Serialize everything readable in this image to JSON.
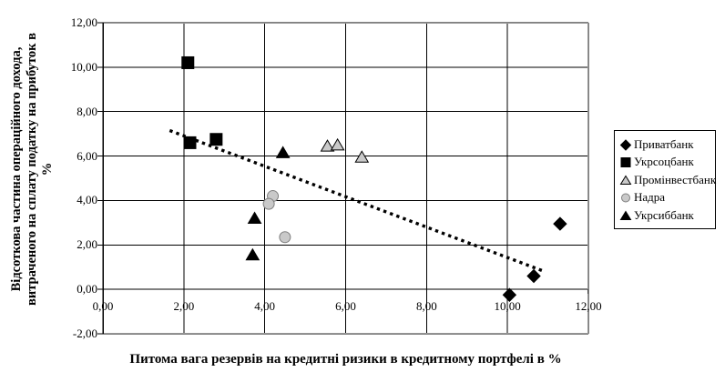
{
  "chart_data": {
    "type": "scatter",
    "title": "",
    "xlabel": "Питома вага резервів на кредитні ризики в кредитному портфелі в %",
    "ylabel_lines": [
      "Відсоткова частина операційного дохода,",
      "витраченого на сплату податку на прибуток в",
      "%"
    ],
    "xlim": [
      0,
      12
    ],
    "ylim": [
      -2,
      12
    ],
    "x_tick_values": [
      0,
      2,
      4,
      6,
      8,
      10,
      12
    ],
    "x_tick_labels": [
      "0,00",
      "2,00",
      "4,00",
      "6,00",
      "8,00",
      "10,00",
      "12,00"
    ],
    "y_tick_values": [
      -2,
      0,
      2,
      4,
      6,
      8,
      10,
      12
    ],
    "y_tick_labels": [
      "-2,00",
      "0,00",
      "2,00",
      "4,00",
      "6,00",
      "8,00",
      "10,00",
      "12,00"
    ],
    "grid": true,
    "legend_position": "right",
    "colors": {
      "marker_black": "#000000",
      "marker_silver_fill": "#c9c9c9",
      "circle_stroke": "#7f7f7f",
      "plot_border": "#969696",
      "gridline": "#000000"
    },
    "series": [
      {
        "name": "Приватбанк",
        "marker": "diamond",
        "fill": "#000000",
        "stroke": "#000000",
        "points": [
          [
            11.3,
            2.95
          ],
          [
            10.65,
            0.6
          ],
          [
            10.05,
            -0.25
          ]
        ]
      },
      {
        "name": "Укрсоцбанк",
        "marker": "square",
        "fill": "#000000",
        "stroke": "#000000",
        "points": [
          [
            2.1,
            10.2
          ],
          [
            2.15,
            6.6
          ],
          [
            2.8,
            6.75
          ]
        ]
      },
      {
        "name": "Промінвестбанк",
        "marker": "triangle-open",
        "fill": "#c9c9c9",
        "stroke": "#000000",
        "points": [
          [
            5.55,
            6.45
          ],
          [
            5.8,
            6.5
          ],
          [
            6.4,
            5.95
          ]
        ]
      },
      {
        "name": "Надра",
        "marker": "circle",
        "fill": "#c9c9c9",
        "stroke": "#7f7f7f",
        "points": [
          [
            4.2,
            4.2
          ],
          [
            4.1,
            3.85
          ],
          [
            4.5,
            2.35
          ]
        ]
      },
      {
        "name": "Укрсиббанк",
        "marker": "triangle-solid",
        "fill": "#000000",
        "stroke": "#000000",
        "points": [
          [
            4.45,
            6.15
          ],
          [
            3.75,
            3.2
          ],
          [
            3.7,
            1.55
          ]
        ]
      }
    ],
    "trendline": {
      "style": "dotted",
      "color": "#000000",
      "from": [
        1.65,
        7.15
      ],
      "to": [
        10.85,
        0.85
      ]
    }
  }
}
